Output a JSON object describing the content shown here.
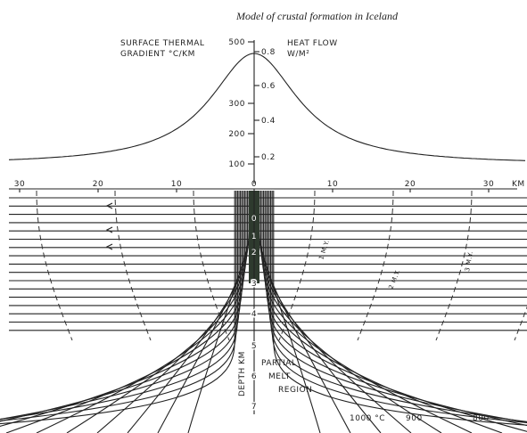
{
  "title": "Model of crustal formation in Iceland",
  "left_axis": {
    "label": [
      "SURFACE THERMAL",
      "GRADIENT °C/KM"
    ],
    "ticks": [
      "500",
      "300",
      "200",
      "100"
    ]
  },
  "right_axis": {
    "label": [
      "HEAT FLOW",
      "W/M²"
    ],
    "ticks": [
      "0.8",
      "0.6",
      "0.4",
      "0.2"
    ]
  },
  "distance_axis": {
    "ticks": [
      "30",
      "20",
      "10",
      "0",
      "10",
      "20",
      "30"
    ],
    "unit": "KM"
  },
  "depth_axis": {
    "label": "DEPTH KM",
    "ticks": [
      "0",
      "1",
      "2",
      "3",
      "4",
      "5",
      "6",
      "7"
    ]
  },
  "region_label": [
    "PARTIAL",
    "MELT",
    "REGION"
  ],
  "isotherms": [
    "1000 °C",
    "900",
    "800"
  ],
  "isochrons": [
    "1 M.Y.",
    "2 M.Y.",
    "3 M.Y."
  ]
}
